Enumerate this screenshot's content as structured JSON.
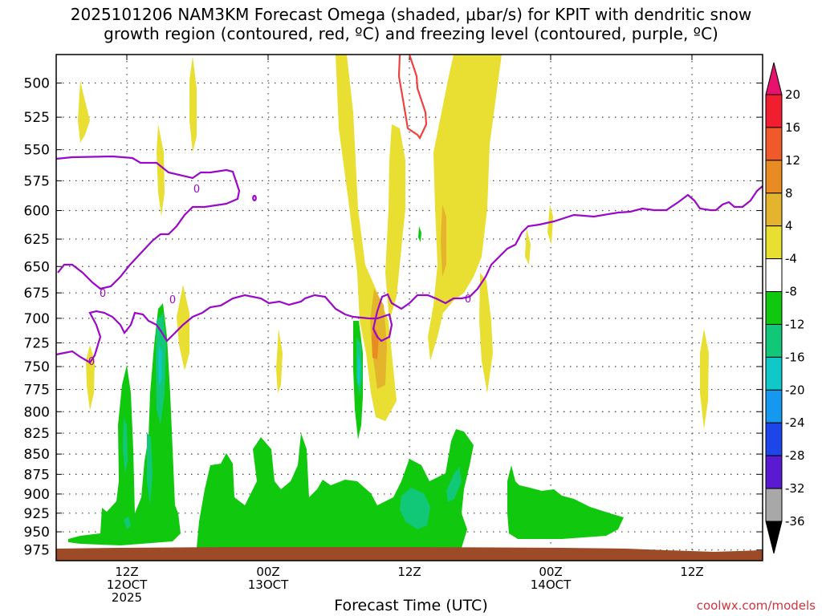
{
  "chart_data": {
    "type": "heatmap",
    "title_line1": "2025101206 NAM3KM Forecast Omega (shaded, μbar/s) for KPIT with dendritic snow",
    "title_line2": "growth region (contoured, red, ºC) and freezing level (contoured, purple, ºC)",
    "xlabel": "Forecast Time (UTC)",
    "credit": "coolwx.com/models",
    "y_axis": {
      "ticks": [
        500,
        525,
        550,
        575,
        600,
        625,
        650,
        675,
        700,
        725,
        750,
        775,
        800,
        825,
        850,
        875,
        900,
        925,
        950,
        975
      ],
      "min": 480,
      "max": 990,
      "scale": "log-pressure"
    },
    "x_axis": {
      "range_hours": [
        0,
        60
      ],
      "ticks": [
        {
          "hour": 6,
          "line1": "12Z",
          "line2": "12OCT",
          "line3": "2025"
        },
        {
          "hour": 18,
          "line1": "00Z",
          "line2": "13OCT",
          "line3": ""
        },
        {
          "hour": 30,
          "line1": "12Z",
          "line2": "",
          "line3": ""
        },
        {
          "hour": 42,
          "line1": "00Z",
          "line2": "14OCT",
          "line3": ""
        },
        {
          "hour": 54,
          "line1": "12Z",
          "line2": "",
          "line3": ""
        }
      ]
    },
    "colorbar": {
      "levels": [
        20,
        16,
        12,
        8,
        4,
        -4,
        -8,
        -12,
        -16,
        -20,
        -24,
        -28,
        -32,
        -36
      ],
      "colors": [
        "#f01e2e",
        "#f0592a",
        "#e88b22",
        "#e4b52c",
        "#e8df32",
        "#ffffff",
        "#10c80e",
        "#10c878",
        "#10c8c8",
        "#1498f0",
        "#1c46e8",
        "#5a1ad2",
        "#9c0ad2",
        "#a8a8a8"
      ],
      "over_color": "#e8126e",
      "under_color": "#000000"
    },
    "contour_labels": [
      "0",
      "0",
      "0",
      "0"
    ],
    "freezing_level_color": "#9a08c8",
    "dgz_color": "#f04040",
    "terrain_color": "#9c4a28"
  }
}
